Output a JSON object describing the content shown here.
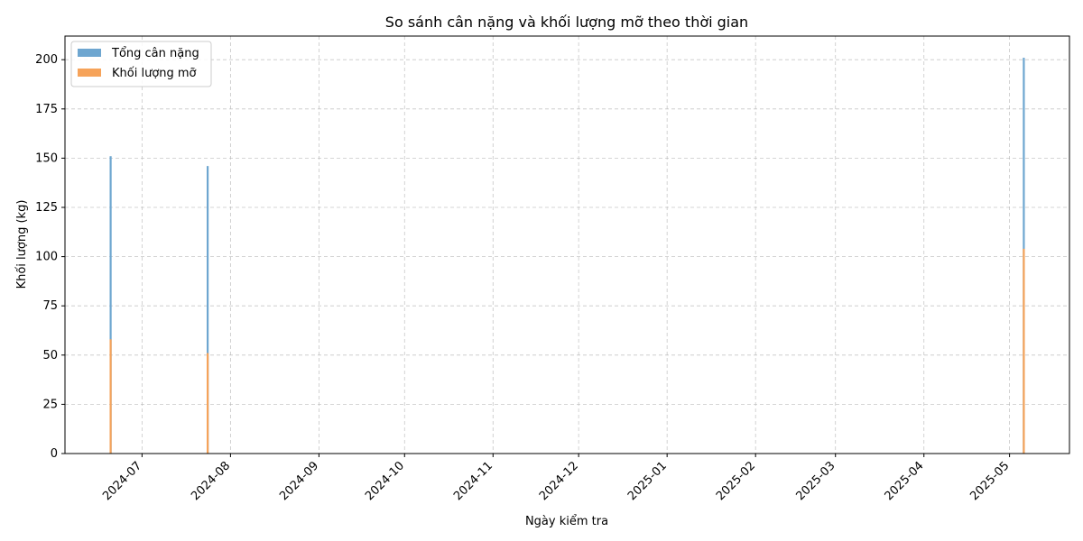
{
  "chart_data": {
    "type": "bar",
    "title": "So sánh cân nặng và khối lượng mỡ theo thời gian",
    "xlabel": "Ngày kiểm tra",
    "ylabel": "Khối lượng (kg)",
    "x_dates": [
      "2024-06-20",
      "2024-07-24",
      "2025-05-06"
    ],
    "series": [
      {
        "name": "Tổng cân nặng",
        "values": [
          151,
          146,
          201
        ],
        "color": "#6ea6d0"
      },
      {
        "name": "Khối lượng mỡ",
        "values": [
          58,
          51,
          104
        ],
        "color": "#f6a35a"
      }
    ],
    "xlim": [
      "2024-06-04",
      "2025-05-22"
    ],
    "x_ticks": [
      "2024-07",
      "2024-08",
      "2024-09",
      "2024-10",
      "2024-11",
      "2024-12",
      "2025-01",
      "2025-02",
      "2025-03",
      "2025-04",
      "2025-05"
    ],
    "ylim": [
      0,
      212
    ],
    "y_ticks": [
      0,
      25,
      50,
      75,
      100,
      125,
      150,
      175,
      200
    ],
    "grid": true,
    "legend_position": "upper-left"
  }
}
